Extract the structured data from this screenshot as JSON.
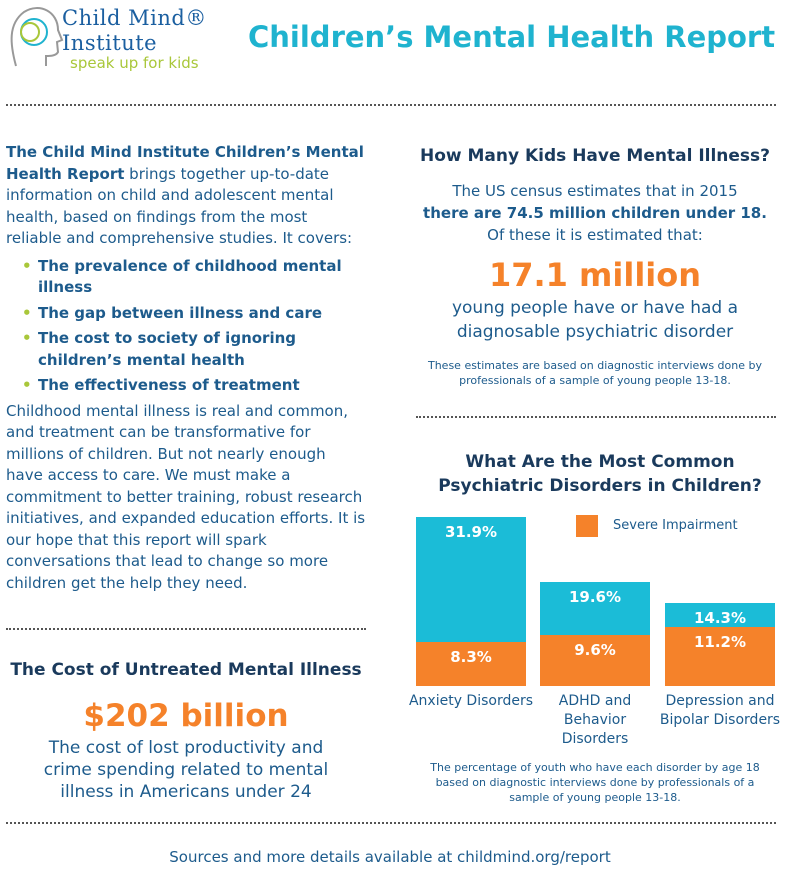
{
  "logo": {
    "line1": "Child Mind®",
    "line2": "Institute",
    "tagline": "speak up for kids"
  },
  "title": "Children’s Mental Health Report",
  "intro": {
    "lead_bold": "The Child Mind Institute Children’s Mental Health Report",
    "lead_rest": " brings together up-to-date information on child and adolescent mental health, based on findings from the most reliable and comprehensive studies. It covers:",
    "bullets": [
      "The prevalence of childhood mental illness",
      "The gap between illness and care",
      "The cost to society of ignoring children’s mental health",
      "The effectiveness of treatment"
    ],
    "body": "Childhood mental illness is real and common, and treatment can be transformative for millions of children. But not nearly enough have access to care. We must make a commitment to better training, robust research initiatives, and expanded education efforts. It is our hope that this report will spark conversations that lead to change so more children get the help they need."
  },
  "cost": {
    "heading": "The Cost of Untreated Mental Illness",
    "amount": "$202 billion",
    "desc": "The cost of lost productivity and crime spending related to mental illness in Americans under 24"
  },
  "kids": {
    "heading": "How Many Kids Have Mental Illness?",
    "line1": "The US census estimates that in 2015",
    "line2": "there are 74.5 million children under 18.",
    "line3": "Of these it is estimated that:",
    "big": "17.1 million",
    "desc": "young people have or have had a diagnosable psychiatric disorder",
    "note": "These estimates are based on diagnostic interviews done by professionals of a sample of young people 13-18."
  },
  "chart_data": {
    "type": "bar",
    "title": "What Are the Most Common Psychiatric Disorders in Children?",
    "categories": [
      "Anxiety Disorders",
      "ADHD and Behavior Disorders",
      "Depression and Bipolar Disorders"
    ],
    "series": [
      {
        "name": "",
        "values": [
          31.9,
          19.6,
          14.3
        ],
        "labels": [
          "31.9%",
          "19.6%",
          "14.3%"
        ],
        "color": "#1bbcd7"
      },
      {
        "name": "Severe Impairment",
        "values": [
          8.3,
          9.6,
          11.2
        ],
        "labels": [
          "8.3%",
          "9.6%",
          "11.2%"
        ],
        "color": "#f5822a"
      }
    ],
    "legend": "top-right",
    "caption": "The percentage of youth who have each disorder by age 18 based on diagnostic interviews done by professionals of a sample of young people 13-18."
  },
  "footer": "Sources and more details available at childmind.org/report"
}
